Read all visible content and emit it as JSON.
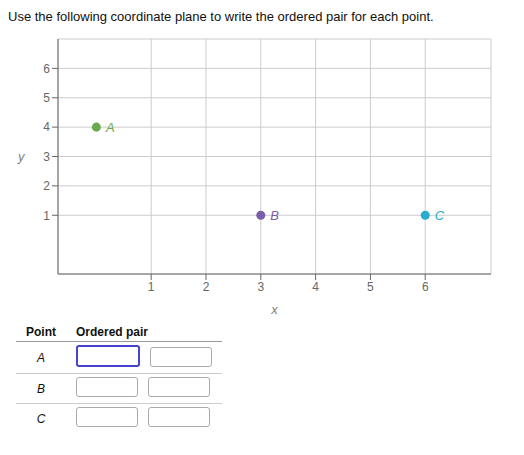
{
  "chart_data": {
    "type": "scatter",
    "title": "Use the following coordinate plane to write the ordered pair for each point.",
    "xlabel": "x",
    "ylabel": "y",
    "series": [
      {
        "name": "A",
        "color": "#6aaa4e",
        "x": [
          0
        ],
        "values": [
          4
        ]
      },
      {
        "name": "B",
        "color": "#7b5ea7",
        "x": [
          3
        ],
        "values": [
          1
        ]
      },
      {
        "name": "C",
        "color": "#2aaccc",
        "x": [
          6
        ],
        "values": [
          1
        ]
      }
    ],
    "xlim": [
      -0.7,
      7.2
    ],
    "ylim": [
      -1.0,
      7.0
    ],
    "xticks": [
      1,
      2,
      3,
      4,
      5,
      6
    ],
    "yticks": [
      1,
      2,
      3,
      4,
      5,
      6
    ],
    "grid": true,
    "annotations": [
      "Point",
      "Ordered pair"
    ]
  }
}
